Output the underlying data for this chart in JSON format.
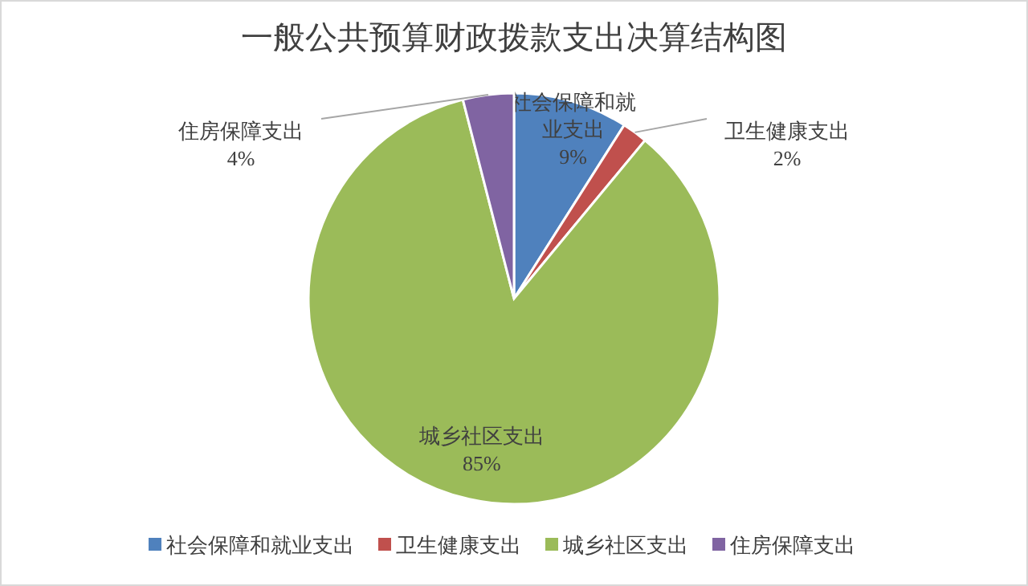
{
  "chart_data": {
    "type": "pie",
    "title": "一般公共预算财政拨款支出决算结构图",
    "categories": [
      "社会保障和就业支出",
      "卫生健康支出",
      "城乡社区支出",
      "住房保障支出"
    ],
    "values": [
      9,
      2,
      85,
      4
    ],
    "colors": [
      "#4f81bd",
      "#c0504d",
      "#9bbb59",
      "#8064a2"
    ],
    "value_labels": [
      "9%",
      "2%",
      "85%",
      "4%"
    ],
    "legend": "bottom"
  }
}
